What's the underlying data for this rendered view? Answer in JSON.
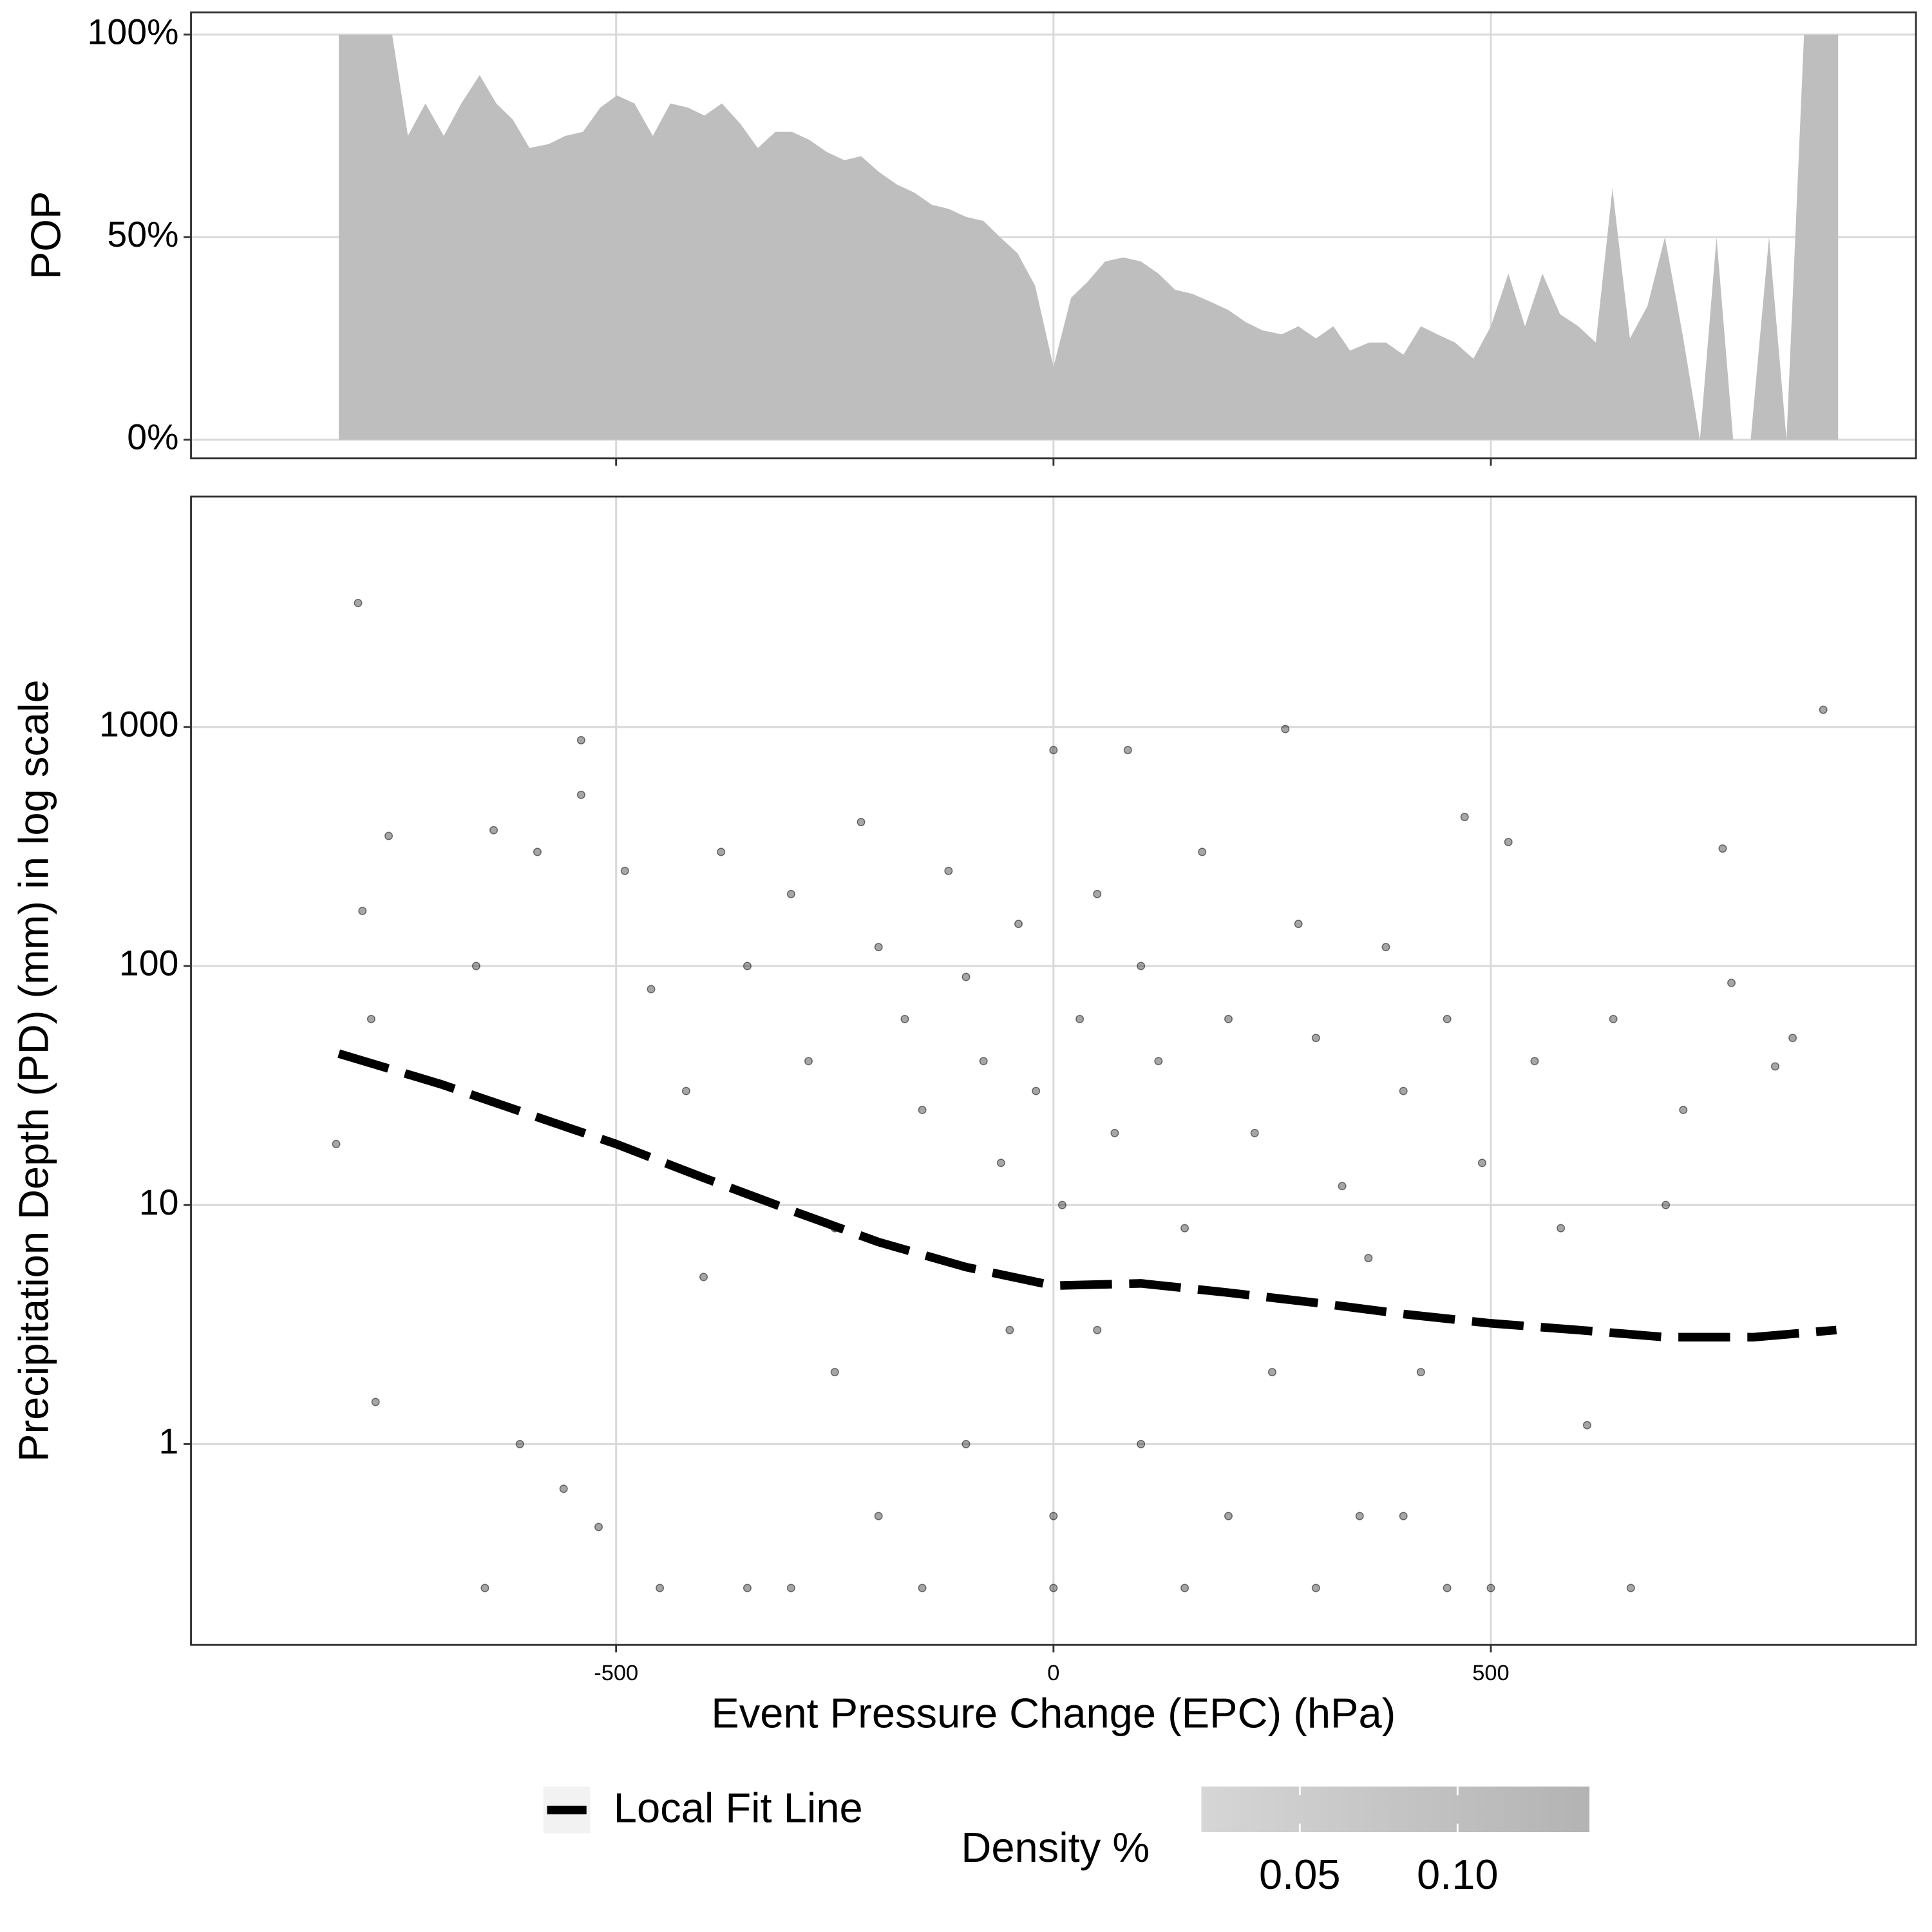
{
  "chart_data": [
    {
      "type": "area",
      "ylabel": "POP",
      "color": "#bebebe",
      "grid": true,
      "show_xtick_labels": false,
      "x": [
        -817,
        -756,
        -738,
        -718,
        -697,
        -677,
        -656,
        -637,
        -618,
        -599,
        -577,
        -558,
        -538,
        -518,
        -499,
        -479,
        -458,
        -438,
        -418,
        -399,
        -379,
        -358,
        -338,
        -318,
        -299,
        -279,
        -259,
        -239,
        -220,
        -199,
        -179,
        -159,
        -139,
        -120,
        -100,
        -80,
        -61,
        -41,
        -21,
        0,
        20,
        39,
        59,
        80,
        100,
        120,
        139,
        159,
        180,
        200,
        220,
        239,
        261,
        280,
        300,
        320,
        339,
        361,
        380,
        400,
        420,
        439,
        459,
        480,
        500,
        520,
        539,
        559,
        579,
        600,
        620,
        639,
        659,
        679,
        699,
        720,
        739,
        758,
        777,
        797,
        818,
        838,
        858,
        897
      ],
      "values": [
        100,
        100,
        75,
        83,
        75,
        83,
        90,
        83,
        79,
        72,
        73,
        75,
        76,
        82,
        85,
        83,
        75,
        83,
        82,
        80,
        83,
        78,
        72,
        76,
        76,
        74,
        71,
        69,
        70,
        66,
        63,
        61,
        58,
        57,
        55,
        54,
        50,
        46,
        38,
        18,
        35,
        39,
        44,
        45,
        44,
        41,
        37,
        36,
        34,
        32,
        29,
        27,
        26,
        28,
        25,
        28,
        22,
        24,
        24,
        21,
        28,
        26,
        24,
        20,
        28,
        41,
        28,
        41,
        31,
        28,
        24,
        62,
        25,
        33,
        50,
        25,
        0,
        50,
        0,
        0,
        50,
        0,
        100,
        100
      ],
      "xlim": [
        -986,
        986
      ],
      "xticks": [
        -500,
        0,
        500
      ],
      "ylim": [
        -4.6,
        105.5
      ],
      "yticks": [
        {
          "value": 0,
          "label": "0%"
        },
        {
          "value": 50,
          "label": "50%"
        },
        {
          "value": 100,
          "label": "100%"
        }
      ]
    },
    {
      "type": "scatter",
      "xlabel": "Event Pressure Change (EPC) (hPa)",
      "ylabel": "Precipitation Depth (PD) (mm) in log scale",
      "log_y": true,
      "grid": true,
      "point_color": "#000000",
      "show_xtick_labels": true,
      "x": [
        -795,
        -540,
        -540,
        -760,
        -790,
        -780,
        -660,
        -640,
        -820,
        -775,
        -650,
        -610,
        -590,
        -560,
        -520,
        -490,
        -460,
        -420,
        -400,
        -380,
        -350,
        -300,
        -280,
        -250,
        -220,
        -200,
        -170,
        -150,
        -120,
        -100,
        -80,
        -60,
        -40,
        -20,
        0,
        10,
        30,
        50,
        70,
        85,
        100,
        120,
        150,
        170,
        200,
        230,
        265,
        280,
        300,
        330,
        360,
        380,
        400,
        420,
        450,
        470,
        490,
        520,
        550,
        580,
        610,
        640,
        660,
        700,
        720,
        765,
        775,
        825,
        845,
        880,
        -300,
        -150,
        0,
        150,
        300,
        450,
        -200,
        0,
        200,
        400,
        -100,
        100,
        -250,
        250,
        -50,
        50,
        -350,
        350,
        -450,
        500
      ],
      "y": [
        3300,
        880,
        520,
        350,
        170,
        60,
        100,
        370,
        18,
        1.5,
        0.25,
        1.0,
        300,
        0.65,
        0.45,
        250,
        80,
        30,
        5,
        300,
        100,
        200,
        40,
        8,
        400,
        120,
        60,
        25,
        250,
        90,
        40,
        15,
        150,
        30,
        800,
        10,
        60,
        200,
        20,
        800,
        100,
        40,
        8,
        300,
        60,
        20,
        980,
        150,
        50,
        12,
        6,
        120,
        30,
        2,
        60,
        420,
        15,
        330,
        40,
        8,
        1.2,
        60,
        0.25,
        10,
        25,
        310,
        85,
        38,
        50,
        1180,
        0.25,
        0.25,
        0.25,
        0.25,
        0.25,
        0.25,
        0.5,
        0.5,
        0.5,
        0.5,
        1,
        1,
        2,
        2,
        3,
        3,
        0.25,
        0.5,
        0.25,
        0.25
      ],
      "xlim": [
        -986,
        986
      ],
      "xticks": [
        -500,
        0,
        500
      ],
      "ylim": [
        0.1445,
        9200
      ],
      "yticks": [
        1,
        10,
        100,
        1000
      ],
      "series": [
        {
          "name": "Local Fit Line",
          "color": "#000000",
          "x": [
            -817,
            -700,
            -600,
            -500,
            -400,
            -300,
            -200,
            -100,
            0,
            100,
            200,
            300,
            400,
            500,
            600,
            700,
            800,
            895
          ],
          "values": [
            43,
            32,
            24,
            18,
            13,
            9.5,
            7,
            5.5,
            4.6,
            4.7,
            4.3,
            3.9,
            3.5,
            3.2,
            3.0,
            2.8,
            2.8,
            3.0
          ]
        }
      ],
      "density_legend": {
        "title": "Density %",
        "limits": [
          0.0188,
          0.1418
        ],
        "colors": [
          "#d6d6d6",
          "#b3b3b3"
        ],
        "ticks": [
          {
            "value": 0.05,
            "label": "0.05"
          },
          {
            "value": 0.1,
            "label": "0.10"
          }
        ]
      }
    }
  ]
}
